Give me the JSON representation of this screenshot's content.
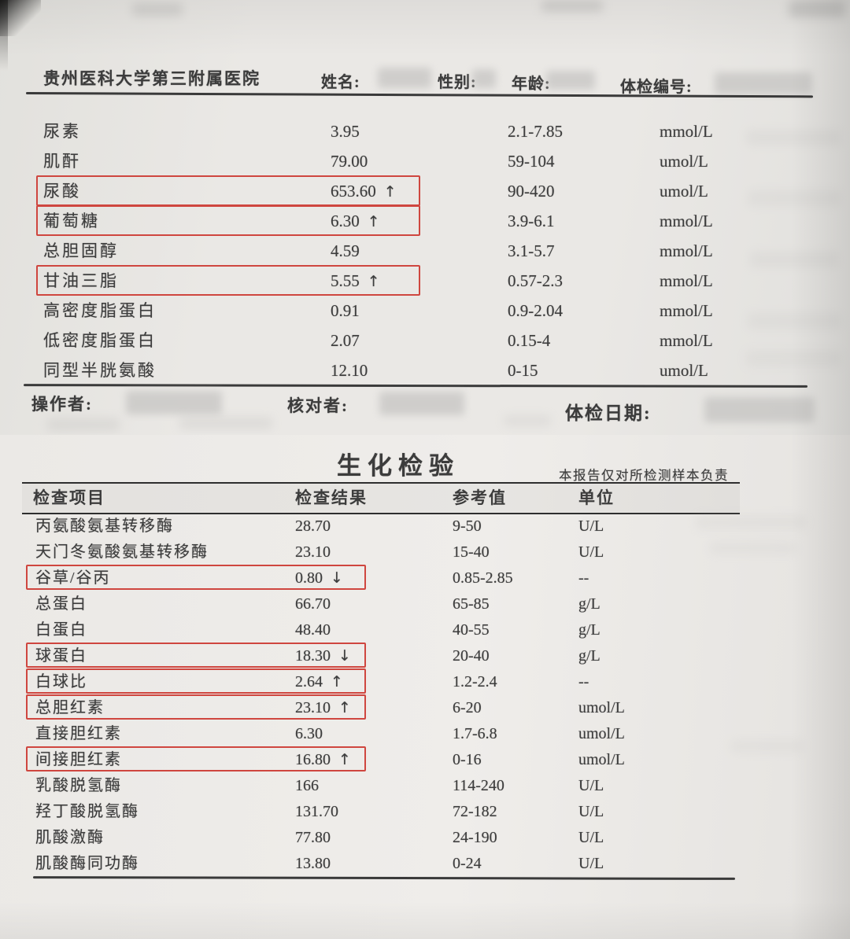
{
  "colors": {
    "box_red": "#cf463f",
    "paper": "#eae8e5",
    "ink": "#3c3c3c"
  },
  "page1": {
    "hospital": "贵州医科大学第三附属医院",
    "header": {
      "name_label": "姓名:",
      "gender_label": "性别:",
      "age_label": "年龄:",
      "exam_no_label": "体检编号:"
    },
    "rows": [
      {
        "item": "尿素",
        "result": "3.95",
        "flag": "",
        "ref": "2.1-7.85",
        "unit": "mmol/L",
        "boxed": false
      },
      {
        "item": "肌酐",
        "result": "79.00",
        "flag": "",
        "ref": "59-104",
        "unit": "umol/L",
        "boxed": false
      },
      {
        "item": "尿酸",
        "result": "653.60",
        "flag": "↑",
        "ref": "90-420",
        "unit": "umol/L",
        "boxed": true
      },
      {
        "item": "葡萄糖",
        "result": "6.30",
        "flag": "↑",
        "ref": "3.9-6.1",
        "unit": "mmol/L",
        "boxed": true
      },
      {
        "item": "总胆固醇",
        "result": "4.59",
        "flag": "",
        "ref": "3.1-5.7",
        "unit": "mmol/L",
        "boxed": false
      },
      {
        "item": "甘油三脂",
        "result": "5.55",
        "flag": "↑",
        "ref": "0.57-2.3",
        "unit": "mmol/L",
        "boxed": true
      },
      {
        "item": "高密度脂蛋白",
        "result": "0.91",
        "flag": "",
        "ref": "0.9-2.04",
        "unit": "mmol/L",
        "boxed": false
      },
      {
        "item": "低密度脂蛋白",
        "result": "2.07",
        "flag": "",
        "ref": "0.15-4",
        "unit": "mmol/L",
        "boxed": false
      },
      {
        "item": "同型半胱氨酸",
        "result": "12.10",
        "flag": "",
        "ref": "0-15",
        "unit": "umol/L",
        "boxed": false
      }
    ],
    "footer": {
      "operator_label": "操作者:",
      "checker_label": "核对者:",
      "exam_date_label": "体检日期:"
    }
  },
  "page2": {
    "title": "生化检验",
    "disclaimer": "本报告仅对所检测样本负责",
    "columns": [
      "检查项目",
      "检查结果",
      "参考值",
      "单位"
    ],
    "rows": [
      {
        "item": "丙氨酸氨基转移酶",
        "result": "28.70",
        "flag": "",
        "ref": "9-50",
        "unit": "U/L",
        "boxed": false
      },
      {
        "item": "天门冬氨酸氨基转移酶",
        "result": "23.10",
        "flag": "",
        "ref": "15-40",
        "unit": "U/L",
        "boxed": false
      },
      {
        "item": "谷草/谷丙",
        "result": "0.80",
        "flag": "↓",
        "ref": "0.85-2.85",
        "unit": "--",
        "boxed": true
      },
      {
        "item": "总蛋白",
        "result": "66.70",
        "flag": "",
        "ref": "65-85",
        "unit": "g/L",
        "boxed": false
      },
      {
        "item": "白蛋白",
        "result": "48.40",
        "flag": "",
        "ref": "40-55",
        "unit": "g/L",
        "boxed": false
      },
      {
        "item": "球蛋白",
        "result": "18.30",
        "flag": "↓",
        "ref": "20-40",
        "unit": "g/L",
        "boxed": true
      },
      {
        "item": "白球比",
        "result": "2.64",
        "flag": "↑",
        "ref": "1.2-2.4",
        "unit": "--",
        "boxed": true
      },
      {
        "item": "总胆红素",
        "result": "23.10",
        "flag": "↑",
        "ref": "6-20",
        "unit": "umol/L",
        "boxed": true
      },
      {
        "item": "直接胆红素",
        "result": "6.30",
        "flag": "",
        "ref": "1.7-6.8",
        "unit": "umol/L",
        "boxed": false
      },
      {
        "item": "间接胆红素",
        "result": "16.80",
        "flag": "↑",
        "ref": "0-16",
        "unit": "umol/L",
        "boxed": true
      },
      {
        "item": "乳酸脱氢酶",
        "result": "166",
        "flag": "",
        "ref": "114-240",
        "unit": "U/L",
        "boxed": false
      },
      {
        "item": "羟丁酸脱氢酶",
        "result": "131.70",
        "flag": "",
        "ref": "72-182",
        "unit": "U/L",
        "boxed": false
      },
      {
        "item": "肌酸激酶",
        "result": "77.80",
        "flag": "",
        "ref": "24-190",
        "unit": "U/L",
        "boxed": false
      },
      {
        "item": "肌酸酶同功酶",
        "result": "13.80",
        "flag": "",
        "ref": "0-24",
        "unit": "U/L",
        "boxed": false
      }
    ]
  }
}
